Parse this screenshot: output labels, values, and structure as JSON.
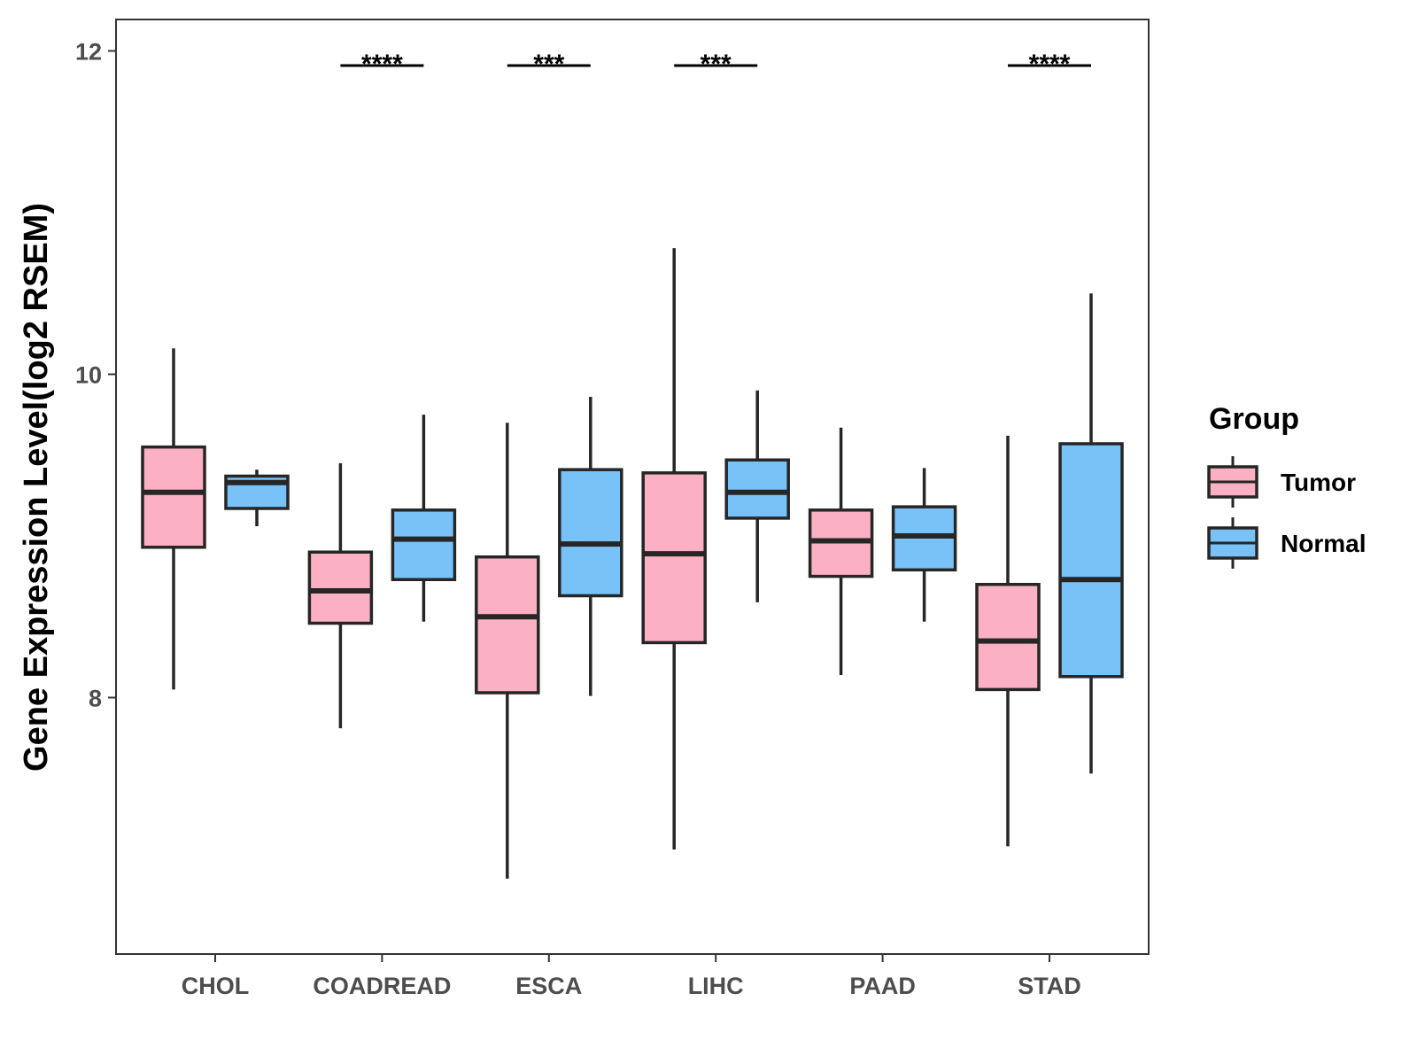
{
  "chart_data": {
    "type": "boxplot",
    "title": "",
    "xlabel": "",
    "ylabel": "Gene Expression Level(log2 RSEM)",
    "ylim": [
      6.45,
      12.2
    ],
    "yticks": [
      8,
      10,
      12
    ],
    "ytick_labels": [
      "8",
      "10",
      "12"
    ],
    "categories": [
      "CHOL",
      "COADREAD",
      "ESCA",
      "LIHC",
      "PAAD",
      "STAD"
    ],
    "legend": {
      "title": "Group",
      "position": "right",
      "entries": [
        {
          "name": "Tumor",
          "color": "#FBB1C3"
        },
        {
          "name": "Normal",
          "color": "#78C2F8"
        }
      ]
    },
    "series": [
      {
        "name": "Tumor",
        "color": "#FBB1C3",
        "boxes": [
          {
            "category": "CHOL",
            "min": 8.05,
            "q1": 8.93,
            "median": 9.27,
            "q3": 9.55,
            "max": 10.16
          },
          {
            "category": "COADREAD",
            "min": 7.81,
            "q1": 8.46,
            "median": 8.66,
            "q3": 8.9,
            "max": 9.45
          },
          {
            "category": "ESCA",
            "min": 6.88,
            "q1": 8.03,
            "median": 8.5,
            "q3": 8.87,
            "max": 9.7
          },
          {
            "category": "LIHC",
            "min": 7.06,
            "q1": 8.34,
            "median": 8.89,
            "q3": 9.39,
            "max": 10.78
          },
          {
            "category": "PAAD",
            "min": 8.14,
            "q1": 8.75,
            "median": 8.97,
            "q3": 9.16,
            "max": 9.67
          },
          {
            "category": "STAD",
            "min": 7.08,
            "q1": 8.05,
            "median": 8.35,
            "q3": 8.7,
            "max": 9.62
          }
        ]
      },
      {
        "name": "Normal",
        "color": "#78C2F8",
        "boxes": [
          {
            "category": "CHOL",
            "min": 9.06,
            "q1": 9.17,
            "median": 9.33,
            "q3": 9.37,
            "max": 9.41
          },
          {
            "category": "COADREAD",
            "min": 8.47,
            "q1": 8.73,
            "median": 8.98,
            "q3": 9.16,
            "max": 9.75
          },
          {
            "category": "ESCA",
            "min": 8.01,
            "q1": 8.63,
            "median": 8.95,
            "q3": 9.41,
            "max": 9.86
          },
          {
            "category": "LIHC",
            "min": 8.59,
            "q1": 9.11,
            "median": 9.27,
            "q3": 9.47,
            "max": 9.9
          },
          {
            "category": "PAAD",
            "min": 8.47,
            "q1": 8.79,
            "median": 9.0,
            "q3": 9.18,
            "max": 9.42
          },
          {
            "category": "STAD",
            "min": 7.53,
            "q1": 8.13,
            "median": 8.73,
            "q3": 9.57,
            "max": 10.5
          }
        ]
      }
    ],
    "significance": [
      {
        "category": "COADREAD",
        "label": "****"
      },
      {
        "category": "ESCA",
        "label": "***"
      },
      {
        "category": "LIHC",
        "label": "***"
      },
      {
        "category": "STAD",
        "label": "****"
      }
    ]
  }
}
